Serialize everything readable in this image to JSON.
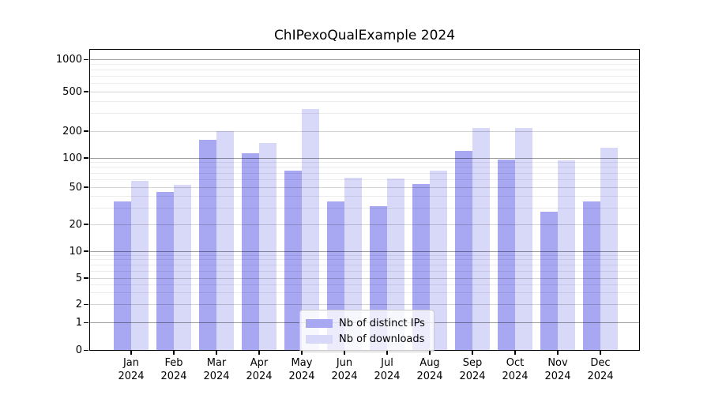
{
  "figure": {
    "title": "ChIPexoQualExample 2024",
    "background": "#ffffff"
  },
  "colors": {
    "ips_bar": "#a7a7f2",
    "downloads_bar": "#d8d8f8",
    "axis": "#000000",
    "grid_major": "#9e9e9e",
    "grid_minor": "#ececec"
  },
  "chart_data": {
    "type": "bar",
    "title": "ChIPexoQualExample 2024",
    "categories": [
      "Jan 2024",
      "Feb 2024",
      "Mar 2024",
      "Apr 2024",
      "May 2024",
      "Jun 2024",
      "Jul 2024",
      "Aug 2024",
      "Sep 2024",
      "Oct 2024",
      "Nov 2024",
      "Dec 2024"
    ],
    "series": [
      {
        "name": "Nb of distinct IPs",
        "color": "#a7a7f2",
        "values": [
          35,
          44,
          157,
          113,
          73,
          35,
          31,
          53,
          118,
          95,
          27,
          35
        ]
      },
      {
        "name": "Nb of downloads",
        "color": "#d8d8f8",
        "values": [
          58,
          52,
          197,
          147,
          330,
          62,
          61,
          73,
          215,
          215,
          93,
          130
        ]
      }
    ],
    "xlabel": "",
    "ylabel": "",
    "yticks": [
      0,
      1,
      2,
      5,
      10,
      20,
      50,
      100,
      200,
      500,
      1000
    ],
    "ytick_labels": [
      "0",
      "1",
      "2",
      "5",
      "10",
      "20",
      "50",
      "100",
      "200",
      "500",
      "1000"
    ],
    "yaxis_scale": "log-like (compressed near zero)",
    "ylim": [
      0,
      1400
    ],
    "grid": "horizontal major + minor",
    "legend_position": "lower center inside plot"
  }
}
